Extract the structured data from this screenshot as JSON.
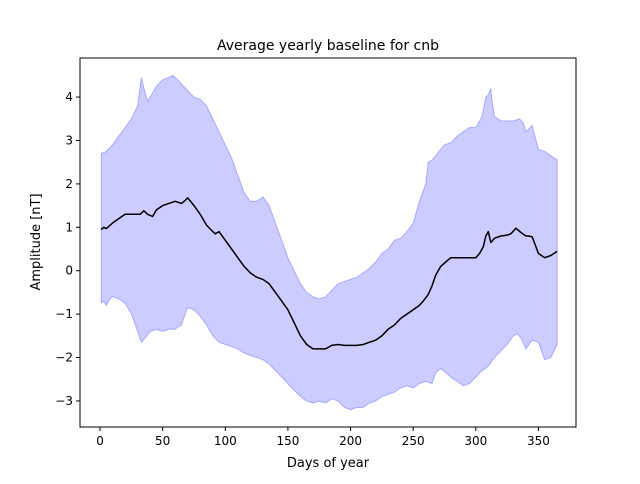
{
  "chart_data": {
    "type": "area",
    "title": "Average yearly baseline for cnb",
    "xlabel": "Days of year",
    "ylabel": "Amplitude [nT]",
    "xlim": [
      -16,
      380
    ],
    "ylim": [
      -3.6,
      4.9
    ],
    "xticks": [
      0,
      50,
      100,
      150,
      200,
      250,
      300,
      350
    ],
    "yticks": [
      -3,
      -2,
      -1,
      0,
      1,
      2,
      3,
      4
    ],
    "grid": false,
    "legend": "none",
    "colors": {
      "line": "#000000",
      "band": "#0000ff",
      "band_alpha": 0.2
    },
    "series": [
      {
        "role": "mean",
        "x": [
          1,
          3,
          5,
          10,
          15,
          20,
          25,
          30,
          32,
          35,
          38,
          42,
          45,
          50,
          55,
          60,
          65,
          68,
          70,
          75,
          80,
          85,
          90,
          92,
          95,
          100,
          105,
          110,
          115,
          120,
          125,
          130,
          135,
          140,
          145,
          150,
          155,
          160,
          165,
          170,
          175,
          180,
          185,
          190,
          195,
          200,
          205,
          210,
          215,
          220,
          225,
          230,
          235,
          240,
          245,
          250,
          255,
          258,
          262,
          265,
          268,
          272,
          276,
          280,
          285,
          290,
          295,
          300,
          303,
          306,
          308,
          310,
          312,
          315,
          320,
          325,
          328,
          332,
          336,
          340,
          342,
          345,
          350,
          355,
          360,
          365
        ],
        "y": [
          0.95,
          1.0,
          0.97,
          1.1,
          1.2,
          1.3,
          1.3,
          1.3,
          1.3,
          1.38,
          1.3,
          1.25,
          1.4,
          1.5,
          1.55,
          1.6,
          1.55,
          1.62,
          1.68,
          1.5,
          1.3,
          1.05,
          0.9,
          0.85,
          0.9,
          0.7,
          0.5,
          0.3,
          0.1,
          -0.05,
          -0.15,
          -0.2,
          -0.3,
          -0.5,
          -0.7,
          -0.9,
          -1.2,
          -1.5,
          -1.7,
          -1.8,
          -1.8,
          -1.8,
          -1.72,
          -1.7,
          -1.72,
          -1.72,
          -1.72,
          -1.7,
          -1.65,
          -1.6,
          -1.5,
          -1.35,
          -1.25,
          -1.1,
          -1.0,
          -0.9,
          -0.8,
          -0.7,
          -0.55,
          -0.35,
          -0.1,
          0.1,
          0.2,
          0.3,
          0.3,
          0.3,
          0.3,
          0.3,
          0.4,
          0.55,
          0.8,
          0.9,
          0.65,
          0.75,
          0.8,
          0.82,
          0.85,
          0.98,
          0.88,
          0.8,
          0.8,
          0.78,
          0.4,
          0.3,
          0.35,
          0.45
        ]
      },
      {
        "role": "upper-bound",
        "x": [
          1,
          5,
          10,
          15,
          20,
          25,
          30,
          33,
          36,
          38,
          40,
          45,
          50,
          55,
          58,
          62,
          65,
          70,
          75,
          80,
          85,
          90,
          95,
          100,
          105,
          110,
          115,
          120,
          125,
          130,
          135,
          140,
          145,
          150,
          155,
          160,
          165,
          170,
          175,
          180,
          185,
          190,
          195,
          200,
          205,
          210,
          215,
          220,
          225,
          230,
          235,
          240,
          245,
          250,
          255,
          260,
          262,
          265,
          268,
          272,
          275,
          280,
          285,
          290,
          295,
          300,
          305,
          308,
          310,
          312,
          313,
          315,
          320,
          325,
          330,
          335,
          338,
          340,
          345,
          350,
          355,
          360,
          365
        ],
        "y": [
          2.7,
          2.75,
          2.9,
          3.1,
          3.3,
          3.5,
          3.8,
          4.45,
          4.1,
          3.9,
          4.0,
          4.25,
          4.4,
          4.45,
          4.5,
          4.4,
          4.3,
          4.15,
          4.0,
          3.95,
          3.8,
          3.5,
          3.2,
          2.9,
          2.6,
          2.2,
          1.8,
          1.6,
          1.6,
          1.7,
          1.5,
          1.1,
          0.7,
          0.3,
          0.0,
          -0.3,
          -0.5,
          -0.6,
          -0.65,
          -0.6,
          -0.45,
          -0.3,
          -0.25,
          -0.2,
          -0.15,
          -0.05,
          0.05,
          0.2,
          0.4,
          0.5,
          0.7,
          0.75,
          0.9,
          1.1,
          1.6,
          2.0,
          2.5,
          2.55,
          2.65,
          2.8,
          2.9,
          2.95,
          3.1,
          3.2,
          3.3,
          3.3,
          3.55,
          4.0,
          4.05,
          4.2,
          3.9,
          3.55,
          3.45,
          3.45,
          3.45,
          3.5,
          3.4,
          3.2,
          3.35,
          2.8,
          2.75,
          2.65,
          2.55
        ]
      },
      {
        "role": "lower-bound",
        "x": [
          1,
          3,
          5,
          8,
          10,
          15,
          20,
          25,
          30,
          33,
          36,
          40,
          45,
          50,
          55,
          60,
          62,
          65,
          68,
          70,
          75,
          80,
          85,
          90,
          95,
          100,
          105,
          110,
          115,
          120,
          125,
          130,
          135,
          140,
          145,
          150,
          155,
          160,
          165,
          170,
          175,
          180,
          185,
          190,
          195,
          200,
          205,
          210,
          215,
          220,
          225,
          230,
          235,
          240,
          245,
          250,
          255,
          260,
          265,
          268,
          272,
          276,
          280,
          285,
          290,
          295,
          300,
          305,
          310,
          315,
          320,
          325,
          330,
          333,
          336,
          340,
          345,
          350,
          355,
          360,
          365
        ],
        "y": [
          -0.75,
          -0.7,
          -0.8,
          -0.65,
          -0.6,
          -0.65,
          -0.75,
          -1.0,
          -1.4,
          -1.65,
          -1.55,
          -1.4,
          -1.35,
          -1.4,
          -1.35,
          -1.35,
          -1.3,
          -1.25,
          -1.0,
          -0.85,
          -0.9,
          -1.05,
          -1.25,
          -1.5,
          -1.65,
          -1.7,
          -1.75,
          -1.8,
          -1.9,
          -1.95,
          -2.0,
          -2.05,
          -2.15,
          -2.3,
          -2.45,
          -2.6,
          -2.75,
          -2.9,
          -3.0,
          -3.05,
          -3.0,
          -3.05,
          -2.95,
          -3.0,
          -3.15,
          -3.2,
          -3.15,
          -3.15,
          -3.05,
          -3.0,
          -2.9,
          -2.85,
          -2.8,
          -2.7,
          -2.65,
          -2.7,
          -2.6,
          -2.55,
          -2.6,
          -2.35,
          -2.25,
          -2.35,
          -2.45,
          -2.55,
          -2.65,
          -2.6,
          -2.45,
          -2.3,
          -2.2,
          -2.0,
          -1.85,
          -1.7,
          -1.5,
          -1.45,
          -1.55,
          -1.8,
          -1.6,
          -1.65,
          -2.05,
          -2.0,
          -1.7
        ]
      }
    ]
  }
}
